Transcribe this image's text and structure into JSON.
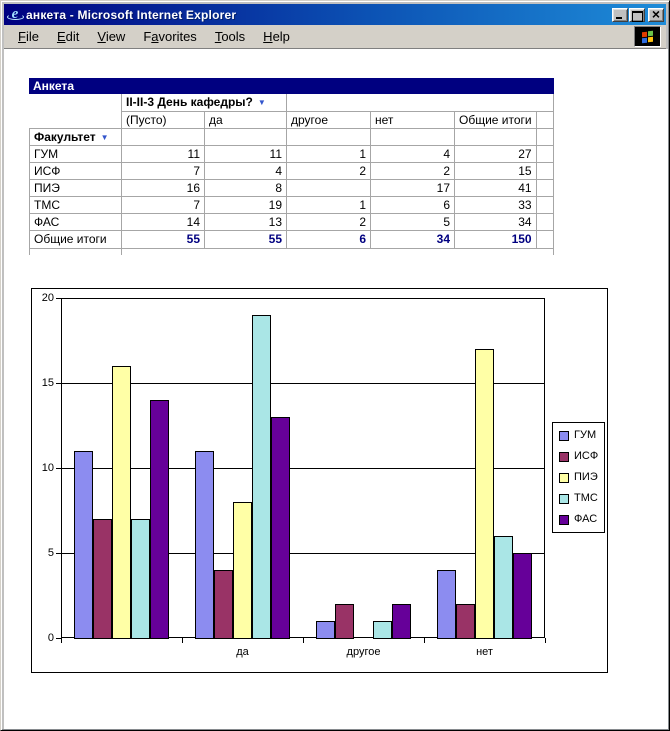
{
  "window": {
    "title": "анкета - Microsoft Internet Explorer",
    "buttons": {
      "minimize": "minimize",
      "maximize": "maximize",
      "close": "close"
    }
  },
  "menu_bar": {
    "items": [
      {
        "label": "File",
        "underline_index": 0
      },
      {
        "label": "Edit",
        "underline_index": 0
      },
      {
        "label": "View",
        "underline_index": 0
      },
      {
        "label": "Favorites",
        "underline_index": 1
      },
      {
        "label": "Tools",
        "underline_index": 0
      },
      {
        "label": "Help",
        "underline_index": 0
      }
    ]
  },
  "pivot_table": {
    "title": "Анкета",
    "column_field": "II-II-3 День кафедры?",
    "row_field": "Факультет",
    "dropdown_glyph": "▼",
    "columns": [
      "(Пусто)",
      "да",
      "другое",
      "нет",
      "Общие итоги"
    ],
    "rows": [
      {
        "label": "ГУМ",
        "values": [
          "11",
          "11",
          "1",
          "4",
          "27"
        ]
      },
      {
        "label": "ИСФ",
        "values": [
          "7",
          "4",
          "2",
          "2",
          "15"
        ]
      },
      {
        "label": "ПИЭ",
        "values": [
          "16",
          "8",
          "",
          "17",
          "41"
        ]
      },
      {
        "label": "ТМС",
        "values": [
          "7",
          "19",
          "1",
          "6",
          "33"
        ]
      },
      {
        "label": "ФАС",
        "values": [
          "14",
          "13",
          "2",
          "5",
          "34"
        ]
      }
    ],
    "totals": {
      "label": "Общие итоги",
      "values": [
        "55",
        "55",
        "6",
        "34",
        "150"
      ]
    }
  },
  "chart_data": {
    "type": "bar",
    "categories": [
      "",
      "да",
      "другое",
      "нет"
    ],
    "series": [
      {
        "name": "ГУМ",
        "color": "#8c8cf0",
        "values": [
          11,
          11,
          1,
          4
        ]
      },
      {
        "name": "ИСФ",
        "color": "#993366",
        "values": [
          7,
          4,
          2,
          2
        ]
      },
      {
        "name": "ПИЭ",
        "color": "#ffffa6",
        "values": [
          16,
          8,
          0,
          17
        ]
      },
      {
        "name": "ТМС",
        "color": "#aae6e6",
        "values": [
          7,
          19,
          1,
          6
        ]
      },
      {
        "name": "ФАС",
        "color": "#660099",
        "values": [
          14,
          13,
          2,
          5
        ]
      }
    ],
    "title": "",
    "xlabel": "",
    "ylabel": "",
    "ylim": [
      0,
      20
    ],
    "yticks": [
      0,
      5,
      10,
      15,
      20
    ],
    "grid": true,
    "legend_position": "right"
  },
  "colors": {
    "banner": "#000080",
    "total_text": "#000080",
    "table_border": "#a6a6a6",
    "titlebar_left": "#000080",
    "titlebar_right": "#1e8cd8"
  }
}
